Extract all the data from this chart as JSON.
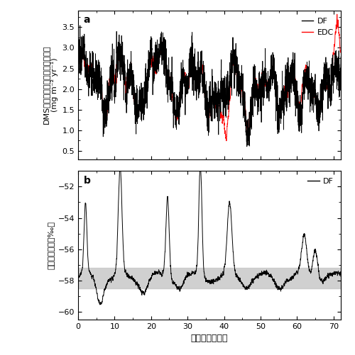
{
  "title_a": "a",
  "title_b": "b",
  "ylabel_a_top": "DMS起源硫酸イオンのフラックス",
  "ylabel_a_bot": "(mg m⁻² yr⁻¹)",
  "ylabel_b": "酸素同位体比（‰）",
  "xlabel": "年代（万年前）",
  "legend_a": [
    "DF",
    "EDC"
  ],
  "legend_b": [
    "DF"
  ],
  "line_colors_a": [
    "black",
    "red"
  ],
  "line_colors_b": [
    "black"
  ],
  "xlim": [
    0,
    72
  ],
  "ylim_a": [
    0.3,
    3.9
  ],
  "ylim_b": [
    -60.5,
    -51.0
  ],
  "yticks_a": [
    0.5,
    1.0,
    1.5,
    2.0,
    2.5,
    3.0,
    3.5
  ],
  "yticks_b": [
    -60,
    -58,
    -56,
    -54,
    -52
  ],
  "xticks": [
    0,
    10,
    20,
    30,
    40,
    50,
    60,
    70
  ],
  "gray_band_b": [
    -58.5,
    -57.2
  ],
  "figsize": [
    5.0,
    5.01
  ],
  "dpi": 100,
  "lw_a": 0.6,
  "lw_b": 0.7
}
